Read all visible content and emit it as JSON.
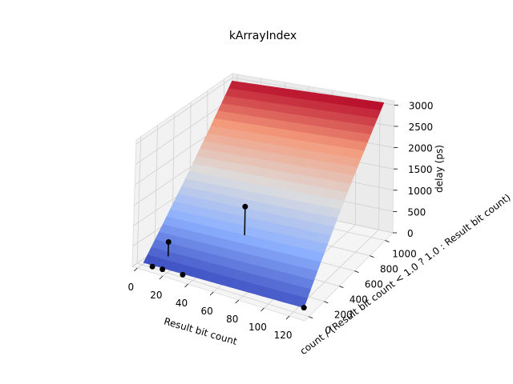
{
  "chart_data": {
    "type": "surface3d",
    "title": "kArrayIndex",
    "xlabel": "Result bit count",
    "ylabel": "count / (Result bit count < 1.0 ? 1.0 : Result bit count)",
    "zlabel": "delay (ps)",
    "xticks": [
      "0",
      "20",
      "40",
      "60",
      "80",
      "100",
      "120"
    ],
    "yticks": [
      "0",
      "200",
      "400",
      "600",
      "800",
      "1000"
    ],
    "zticks": [
      "0",
      "500",
      "1000",
      "1500",
      "2000",
      "2500",
      "3000"
    ],
    "xlim": [
      -4,
      132
    ],
    "ylim": [
      -55,
      1100
    ],
    "zlim": [
      0,
      3100
    ],
    "grid": true,
    "colormap": "coolwarm",
    "surface": {
      "x_range": [
        1,
        128
      ],
      "y_range": [
        1,
        1024
      ],
      "z_corners": {
        "xmin_ymin": 60,
        "xmax_ymin": 150,
        "xmin_ymax": 3050,
        "xmax_ymax": 3140
      }
    },
    "points": [
      {
        "x": 8,
        "y": 1,
        "z": 30
      },
      {
        "x": 16,
        "y": 1,
        "z": 40
      },
      {
        "x": 16,
        "y": 64,
        "z": 600
      },
      {
        "x": 32,
        "y": 1,
        "z": 60
      },
      {
        "x": 64,
        "y": 256,
        "z": 1500
      },
      {
        "x": 128,
        "y": 1,
        "z": 150
      }
    ]
  }
}
